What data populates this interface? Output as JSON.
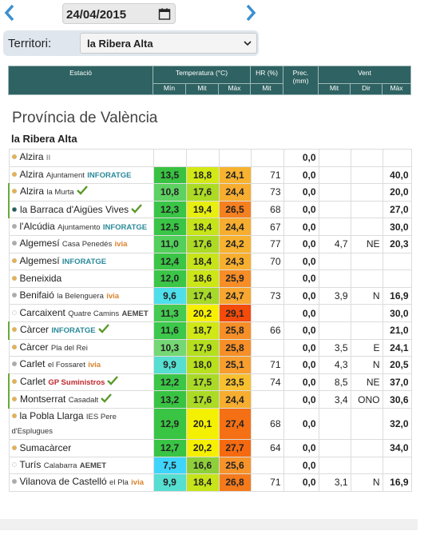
{
  "date_nav": {
    "date": "24/04/2015"
  },
  "filter": {
    "label": "Territori:",
    "value": "la Ribera Alta"
  },
  "table": {
    "headers": {
      "station": "Estació",
      "temperature": "Temperatura (°C)",
      "humidity": "HR (%)",
      "precipitation": "Prec. (mm)",
      "wind": "Vent",
      "temp_sub": [
        "Mín",
        "Mit",
        "Màx"
      ],
      "humidity_sub": [
        "Mit"
      ],
      "wind_sub": [
        "Mit",
        "Dir",
        "Màx"
      ]
    },
    "province": "Província de València",
    "region": "la Ribera Alta",
    "rows": [
      {
        "name": "Alzira",
        "source": "II",
        "source_color": "#999999",
        "dot": "#e8b04a",
        "temp": [
          null,
          null,
          null
        ],
        "hr": null,
        "prec": "0,0",
        "wind": [
          null,
          null,
          null
        ]
      },
      {
        "name": "Alzira",
        "detail": "Ajuntament",
        "source": "INFORATGE",
        "source_color": "#2a8a9a",
        "dot": "#e8b04a",
        "temp": [
          "13,5",
          "18,8",
          "24,1"
        ],
        "hr": "71",
        "prec": "0,0",
        "wind": [
          null,
          null,
          "40,0"
        ]
      },
      {
        "name": "Alzira",
        "detail": "la Murta",
        "check": true,
        "dot": "#e8b04a",
        "temp": [
          "10,8",
          "17,6",
          "24,4"
        ],
        "hr": "73",
        "prec": "0,0",
        "wind": [
          null,
          null,
          "20,0"
        ]
      },
      {
        "name": "la Barraca d'Aigües Vives",
        "check": true,
        "dot": "#1e5a5a",
        "temp": [
          "12,3",
          "19,4",
          "26,5"
        ],
        "hr": "68",
        "prec": "0,0",
        "wind": [
          null,
          null,
          "27,0"
        ]
      },
      {
        "name": "l'Alcúdia",
        "detail": "Ajuntamento",
        "source": "INFORATGE",
        "source_color": "#2a8a9a",
        "dot": "#aaaaaa",
        "temp": [
          "12,5",
          "18,4",
          "24,4"
        ],
        "hr": "67",
        "prec": "0,0",
        "wind": [
          null,
          null,
          "30,0"
        ]
      },
      {
        "name": "Algemesí",
        "detail": "Casa Penedés",
        "source": "ivia",
        "source_color": "#d9822b",
        "dot": "#aaaaaa",
        "temp": [
          "11,0",
          "17,6",
          "24,2"
        ],
        "hr": "77",
        "prec": "0,0",
        "wind": [
          "4,7",
          "NE",
          "20,3"
        ]
      },
      {
        "name": "Algemesí",
        "source": "INFORATGE",
        "source_color": "#2a8a9a",
        "dot": "#e8b04a",
        "temp": [
          "12,4",
          "18,4",
          "24,3"
        ],
        "hr": "70",
        "prec": "0,0",
        "wind": [
          null,
          null,
          null
        ]
      },
      {
        "name": "Beneixida",
        "dot": "#e8b04a",
        "temp": [
          "12,0",
          "18,6",
          "25,9"
        ],
        "hr": null,
        "prec": "0,0",
        "wind": [
          null,
          null,
          null
        ]
      },
      {
        "name": "Benifaió",
        "detail": "la Belenguera",
        "source": "ivia",
        "source_color": "#d9822b",
        "dot": "#aaaaaa",
        "temp": [
          "9,6",
          "17,4",
          "24,7"
        ],
        "hr": "73",
        "prec": "0,0",
        "wind": [
          "3,9",
          "N",
          "16,9"
        ]
      },
      {
        "name": "Carcaixent",
        "detail": "Quatre Camins",
        "source": "AEMET",
        "source_color": "#444444",
        "dot": "#ffffff",
        "temp": [
          "11,3",
          "20,2",
          "29,1"
        ],
        "hr": null,
        "prec": "0,0",
        "wind": [
          null,
          null,
          "30,0"
        ]
      },
      {
        "name": "Càrcer",
        "source": "INFORATGE",
        "source_color": "#2a8a9a",
        "check": true,
        "dot": "#e8b04a",
        "temp": [
          "11,6",
          "18,7",
          "25,8"
        ],
        "hr": "66",
        "prec": "0,0",
        "wind": [
          null,
          null,
          "21,0"
        ]
      },
      {
        "name": "Càrcer",
        "detail": "Pla del Rei",
        "dot": "#e8b04a",
        "temp": [
          "10,3",
          "17,9",
          "25,8"
        ],
        "hr": null,
        "prec": "0,0",
        "wind": [
          "3,5",
          "E",
          "24,1"
        ]
      },
      {
        "name": "Carlet",
        "detail": "el Fossaret",
        "source": "ivia",
        "source_color": "#d9822b",
        "dot": "#aaaaaa",
        "temp": [
          "9,9",
          "18,0",
          "25,1"
        ],
        "hr": "71",
        "prec": "0,0",
        "wind": [
          "4,3",
          "N",
          "20,5"
        ]
      },
      {
        "name": "Carlet",
        "source": "GP Suministros",
        "source_color": "#c0282d",
        "check": true,
        "dot": "#e8b04a",
        "temp": [
          "12,2",
          "17,5",
          "23,5"
        ],
        "hr": "74",
        "prec": "0,0",
        "wind": [
          "8,5",
          "NE",
          "37,0"
        ]
      },
      {
        "name": "Montserrat",
        "detail": "Casadalt",
        "check": true,
        "dot": "#e8b04a",
        "temp": [
          "13,2",
          "17,6",
          "24,4"
        ],
        "hr": null,
        "prec": "0,0",
        "wind": [
          "3,4",
          "ONO",
          "30,6"
        ]
      },
      {
        "name": "la Pobla Llarga",
        "detail": "IES Pere d'Esplugues",
        "dot": "#e8b04a",
        "temp": [
          "12,9",
          "20,1",
          "27,4"
        ],
        "hr": "68",
        "prec": "0,0",
        "wind": [
          null,
          null,
          "32,0"
        ]
      },
      {
        "name": "Sumacàrcer",
        "dot": "#e8b04a",
        "temp": [
          "12,7",
          "20,2",
          "27,7"
        ],
        "hr": "64",
        "prec": "0,0",
        "wind": [
          null,
          null,
          "34,0"
        ]
      },
      {
        "name": "Turís",
        "detail": "Calabarra",
        "source": "AEMET",
        "source_color": "#444444",
        "dot": "#ffffff",
        "temp": [
          "7,5",
          "16,6",
          "25,6"
        ],
        "hr": null,
        "prec": "0,0",
        "wind": [
          null,
          null,
          null
        ]
      },
      {
        "name": "Vilanova de Castelló",
        "detail": "el Pla",
        "source": "ivia",
        "source_color": "#d9822b",
        "dot": "#aaaaaa",
        "temp": [
          "9,9",
          "18,4",
          "26,8"
        ],
        "hr": "71",
        "prec": "0,0",
        "wind": [
          "3,1",
          "N",
          "16,9"
        ]
      }
    ]
  }
}
